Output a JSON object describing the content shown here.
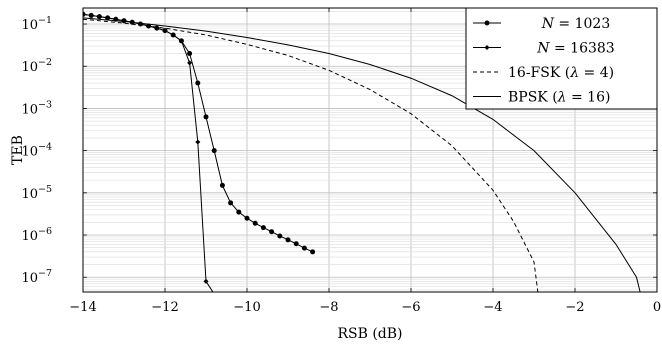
{
  "chart_data": {
    "type": "line",
    "xlabel": "RSB (dB)",
    "ylabel": "TEB",
    "xlim": [
      -14,
      0
    ],
    "ylim_log10": [
      -7.35,
      -0.62
    ],
    "yscale": "log",
    "grid": true,
    "legend_position": "top-right",
    "x_ticks": [
      {
        "value": -14,
        "label": "−14"
      },
      {
        "value": -12,
        "label": "−12"
      },
      {
        "value": -10,
        "label": "−10"
      },
      {
        "value": -8,
        "label": "−8"
      },
      {
        "value": -6,
        "label": "−6"
      },
      {
        "value": -4,
        "label": "−4"
      },
      {
        "value": -2,
        "label": "−2"
      },
      {
        "value": 0,
        "label": "0"
      }
    ],
    "y_ticks": [
      {
        "exp": -1,
        "base": "10",
        "sup": "−1"
      },
      {
        "exp": -2,
        "base": "10",
        "sup": "−2"
      },
      {
        "exp": -3,
        "base": "10",
        "sup": "−3"
      },
      {
        "exp": -4,
        "base": "10",
        "sup": "−4"
      },
      {
        "exp": -5,
        "base": "10",
        "sup": "−5"
      },
      {
        "exp": -6,
        "base": "10",
        "sup": "−6"
      },
      {
        "exp": -7,
        "base": "10",
        "sup": "−7"
      }
    ],
    "series": [
      {
        "name": "N = 1023",
        "legend": {
          "italic": "N",
          "rest": " = 1023"
        },
        "style": "solid-dot",
        "x": [
          -14.0,
          -13.8,
          -13.6,
          -13.4,
          -13.2,
          -13.0,
          -12.8,
          -12.6,
          -12.4,
          -12.2,
          -12.0,
          -11.8,
          -11.6,
          -11.4,
          -11.2,
          -11.0,
          -10.8,
          -10.6,
          -10.4,
          -10.2,
          -10.0,
          -9.8,
          -9.6,
          -9.4,
          -9.2,
          -9.0,
          -8.8,
          -8.6,
          -8.4
        ],
        "y": [
          0.17,
          0.16,
          0.15,
          0.14,
          0.13,
          0.12,
          0.11,
          0.1,
          0.09,
          0.08,
          0.07,
          0.055,
          0.04,
          0.02,
          0.004,
          0.00063,
          0.0001,
          1.5e-05,
          5.8e-06,
          3.5e-06,
          2.5e-06,
          1.9e-06,
          1.5e-06,
          1.2e-06,
          9.5e-07,
          7.7e-07,
          6.2e-07,
          4.9e-07,
          4e-07
        ]
      },
      {
        "name": "N = 16383",
        "legend": {
          "italic": "N",
          "rest": " = 16383"
        },
        "style": "solid-diamond",
        "x": [
          -14.0,
          -13.8,
          -13.6,
          -13.4,
          -13.2,
          -13.0,
          -12.8,
          -12.6,
          -12.4,
          -12.2,
          -12.0,
          -11.8,
          -11.6,
          -11.4,
          -11.2,
          -11.0,
          -10.8
        ],
        "y": [
          0.17,
          0.16,
          0.15,
          0.14,
          0.13,
          0.12,
          0.11,
          0.1,
          0.09,
          0.08,
          0.07,
          0.055,
          0.04,
          0.012,
          0.00016,
          8e-08,
          4e-08
        ]
      },
      {
        "name": "16-FSK (λ = 4)",
        "legend": {
          "plain": "16-FSK (",
          "italic": "λ",
          "rest": " = 4)"
        },
        "style": "dashed",
        "x": [
          -14,
          -13,
          -12,
          -11,
          -10,
          -9,
          -8,
          -7,
          -6,
          -5,
          -4,
          -3.5,
          -3,
          -2.9
        ],
        "y": [
          0.13,
          0.105,
          0.08,
          0.055,
          0.033,
          0.018,
          0.008,
          0.0028,
          0.00075,
          0.00013,
          1.15e-05,
          2.1e-06,
          2.3e-07,
          4e-08
        ]
      },
      {
        "name": "BPSK (λ = 16)",
        "legend": {
          "plain": "BPSK (",
          "italic": "λ",
          "rest": " = 16)"
        },
        "style": "solid",
        "x": [
          -14,
          -13,
          -12,
          -11,
          -10,
          -9,
          -8,
          -7,
          -6,
          -5,
          -4,
          -3,
          -2,
          -1,
          -0.5,
          -0.4
        ],
        "y": [
          0.14,
          0.115,
          0.09,
          0.068,
          0.048,
          0.032,
          0.02,
          0.011,
          0.0052,
          0.002,
          0.00055,
          0.0001,
          1e-05,
          6e-07,
          1e-07,
          4e-08
        ]
      }
    ]
  }
}
